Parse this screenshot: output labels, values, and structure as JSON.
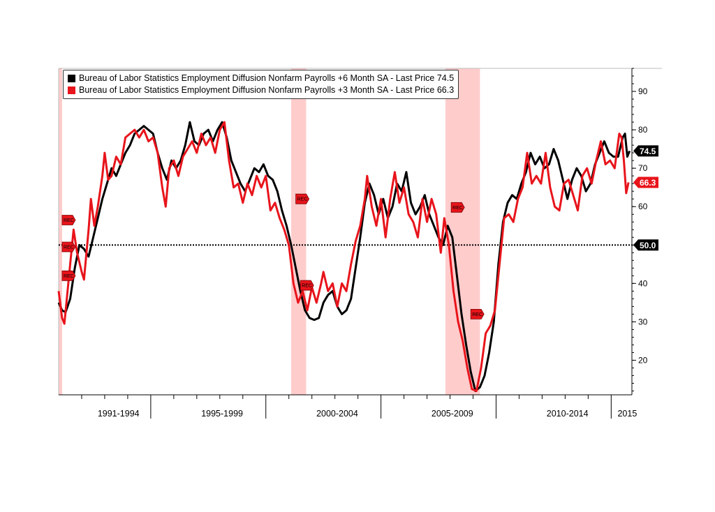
{
  "chart_data": {
    "type": "line",
    "title": "",
    "xlabel": "",
    "ylabel": "",
    "xlim": [
      1990.3,
      2015.2
    ],
    "ylim": [
      11,
      96
    ],
    "y_ticks": [
      20,
      30,
      40,
      50,
      60,
      70,
      80,
      90
    ],
    "y_axis_side": "right",
    "x_period_labels": [
      {
        "label": "1991-1994",
        "center": 1992.9
      },
      {
        "label": "1995-1999",
        "center": 1997.4
      },
      {
        "label": "2000-2004",
        "center": 2002.4
      },
      {
        "label": "2005-2009",
        "center": 2007.4
      },
      {
        "label": "2010-2014",
        "center": 2012.4
      },
      {
        "label": "2015",
        "center": 2015.0
      }
    ],
    "x_period_dividers": [
      1994.3,
      1999.3,
      2004.3,
      2009.3,
      2014.3
    ],
    "x_minor_ticks": [
      1991.3,
      1992.3,
      1993.3,
      1995.3,
      1996.3,
      1997.3,
      1998.3,
      2000.3,
      2001.3,
      2002.3,
      2003.3,
      2005.3,
      2006.3,
      2007.3,
      2008.3,
      2010.3,
      2011.3,
      2012.3,
      2013.3
    ],
    "reference_line": {
      "y": 50.0,
      "label": "50.0",
      "style": "dotted"
    },
    "recession_bands": [
      [
        1990.3,
        1990.45
      ],
      [
        2000.4,
        2001.05
      ],
      [
        2007.1,
        2008.6
      ]
    ],
    "rec_markers": [
      {
        "label": "REC",
        "x": 1990.45,
        "y": 56.5
      },
      {
        "label": "REC",
        "x": 1990.45,
        "y": 49.5
      },
      {
        "label": "REC",
        "x": 1990.45,
        "y": 42.0
      },
      {
        "label": "REC",
        "x": 2000.6,
        "y": 62.0
      },
      {
        "label": "REC",
        "x": 2000.8,
        "y": 39.5
      },
      {
        "label": "REC",
        "x": 2007.35,
        "y": 59.8
      },
      {
        "label": "REC",
        "x": 2008.2,
        "y": 32.0
      }
    ],
    "series": [
      {
        "name": "Bureau of Labor Statistics Employment Diffusion Nonfarm Payrolls +6 Month SA - Last Price 74.5",
        "color": "#000000",
        "last_label": "74.5",
        "points": [
          [
            1990.3,
            35
          ],
          [
            1990.45,
            33
          ],
          [
            1990.6,
            32.5
          ],
          [
            1990.8,
            36
          ],
          [
            1991.0,
            44
          ],
          [
            1991.2,
            50
          ],
          [
            1991.4,
            49
          ],
          [
            1991.6,
            47
          ],
          [
            1991.8,
            52
          ],
          [
            1992.0,
            57
          ],
          [
            1992.2,
            62
          ],
          [
            1992.4,
            66
          ],
          [
            1992.6,
            70
          ],
          [
            1992.8,
            68
          ],
          [
            1993.0,
            71
          ],
          [
            1993.2,
            74
          ],
          [
            1993.4,
            76
          ],
          [
            1993.6,
            79
          ],
          [
            1993.8,
            80
          ],
          [
            1994.0,
            81
          ],
          [
            1994.2,
            80
          ],
          [
            1994.4,
            79
          ],
          [
            1994.6,
            74
          ],
          [
            1994.8,
            70
          ],
          [
            1995.0,
            67
          ],
          [
            1995.2,
            72
          ],
          [
            1995.4,
            70
          ],
          [
            1995.6,
            72
          ],
          [
            1995.8,
            76
          ],
          [
            1996.0,
            82
          ],
          [
            1996.2,
            77
          ],
          [
            1996.4,
            76
          ],
          [
            1996.6,
            79
          ],
          [
            1996.8,
            80
          ],
          [
            1997.0,
            77
          ],
          [
            1997.2,
            80
          ],
          [
            1997.4,
            82
          ],
          [
            1997.6,
            78
          ],
          [
            1997.8,
            72
          ],
          [
            1998.0,
            69
          ],
          [
            1998.2,
            66
          ],
          [
            1998.4,
            64
          ],
          [
            1998.6,
            67
          ],
          [
            1998.8,
            70
          ],
          [
            1999.0,
            69
          ],
          [
            1999.2,
            71
          ],
          [
            1999.4,
            68
          ],
          [
            1999.6,
            67
          ],
          [
            1999.8,
            64
          ],
          [
            2000.0,
            59
          ],
          [
            2000.2,
            55
          ],
          [
            2000.4,
            50
          ],
          [
            2000.6,
            44
          ],
          [
            2000.8,
            38
          ],
          [
            2001.0,
            33
          ],
          [
            2001.2,
            31
          ],
          [
            2001.4,
            30.5
          ],
          [
            2001.6,
            31
          ],
          [
            2001.8,
            35
          ],
          [
            2002.0,
            37
          ],
          [
            2002.2,
            38
          ],
          [
            2002.4,
            34
          ],
          [
            2002.6,
            32
          ],
          [
            2002.8,
            33
          ],
          [
            2003.0,
            36
          ],
          [
            2003.2,
            44
          ],
          [
            2003.4,
            52
          ],
          [
            2003.6,
            61
          ],
          [
            2003.8,
            66
          ],
          [
            2004.0,
            63
          ],
          [
            2004.2,
            58
          ],
          [
            2004.4,
            62
          ],
          [
            2004.6,
            57
          ],
          [
            2004.8,
            60
          ],
          [
            2005.0,
            66
          ],
          [
            2005.2,
            64
          ],
          [
            2005.4,
            69
          ],
          [
            2005.6,
            61
          ],
          [
            2005.8,
            58
          ],
          [
            2006.0,
            60
          ],
          [
            2006.2,
            63
          ],
          [
            2006.4,
            58
          ],
          [
            2006.6,
            55
          ],
          [
            2006.8,
            52
          ],
          [
            2007.0,
            50
          ],
          [
            2007.2,
            55
          ],
          [
            2007.4,
            52
          ],
          [
            2007.6,
            42
          ],
          [
            2007.8,
            32
          ],
          [
            2008.0,
            24
          ],
          [
            2008.2,
            17
          ],
          [
            2008.4,
            12
          ],
          [
            2008.6,
            13
          ],
          [
            2008.8,
            16
          ],
          [
            2009.0,
            22
          ],
          [
            2009.2,
            30
          ],
          [
            2009.4,
            45
          ],
          [
            2009.6,
            56
          ],
          [
            2009.8,
            61
          ],
          [
            2010.0,
            63
          ],
          [
            2010.2,
            62
          ],
          [
            2010.4,
            66
          ],
          [
            2010.6,
            69
          ],
          [
            2010.8,
            74
          ],
          [
            2011.0,
            71
          ],
          [
            2011.2,
            73
          ],
          [
            2011.4,
            70
          ],
          [
            2011.6,
            71
          ],
          [
            2011.8,
            75
          ],
          [
            2012.0,
            72
          ],
          [
            2012.2,
            67
          ],
          [
            2012.4,
            62
          ],
          [
            2012.6,
            67
          ],
          [
            2012.8,
            70
          ],
          [
            2013.0,
            68
          ],
          [
            2013.2,
            64
          ],
          [
            2013.4,
            66
          ],
          [
            2013.6,
            71
          ],
          [
            2013.8,
            74
          ],
          [
            2014.0,
            77
          ],
          [
            2014.2,
            74
          ],
          [
            2014.4,
            73
          ],
          [
            2014.6,
            73
          ],
          [
            2014.8,
            78
          ],
          [
            2014.9,
            79
          ],
          [
            2015.0,
            73
          ],
          [
            2015.1,
            74.5
          ]
        ]
      },
      {
        "name": "Bureau of Labor Statistics Employment Diffusion Nonfarm Payrolls +3 Month SA - Last Price 66.3",
        "color": "#e8141b",
        "last_label": "66.3",
        "points": [
          [
            1990.3,
            38
          ],
          [
            1990.45,
            31
          ],
          [
            1990.55,
            29.5
          ],
          [
            1990.8,
            45
          ],
          [
            1990.95,
            54
          ],
          [
            1991.1,
            48
          ],
          [
            1991.3,
            43
          ],
          [
            1991.4,
            41
          ],
          [
            1991.6,
            54
          ],
          [
            1991.7,
            62
          ],
          [
            1991.85,
            55
          ],
          [
            1992.0,
            60
          ],
          [
            1992.2,
            68
          ],
          [
            1992.3,
            74
          ],
          [
            1992.45,
            67
          ],
          [
            1992.6,
            68
          ],
          [
            1992.8,
            73
          ],
          [
            1993.0,
            71
          ],
          [
            1993.2,
            78
          ],
          [
            1993.4,
            79
          ],
          [
            1993.6,
            80
          ],
          [
            1993.8,
            78
          ],
          [
            1994.0,
            80
          ],
          [
            1994.2,
            77
          ],
          [
            1994.4,
            78
          ],
          [
            1994.6,
            74
          ],
          [
            1994.8,
            65
          ],
          [
            1994.95,
            60
          ],
          [
            1995.1,
            70
          ],
          [
            1995.3,
            72
          ],
          [
            1995.5,
            68
          ],
          [
            1995.7,
            73
          ],
          [
            1995.9,
            75
          ],
          [
            1996.1,
            77
          ],
          [
            1996.3,
            74
          ],
          [
            1996.5,
            79
          ],
          [
            1996.7,
            76
          ],
          [
            1996.9,
            78
          ],
          [
            1997.1,
            74
          ],
          [
            1997.3,
            80
          ],
          [
            1997.5,
            82
          ],
          [
            1997.7,
            72
          ],
          [
            1997.9,
            65
          ],
          [
            1998.1,
            66
          ],
          [
            1998.3,
            61
          ],
          [
            1998.5,
            66
          ],
          [
            1998.7,
            63
          ],
          [
            1998.9,
            68
          ],
          [
            1999.1,
            65
          ],
          [
            1999.3,
            68
          ],
          [
            1999.5,
            59
          ],
          [
            1999.7,
            61
          ],
          [
            1999.9,
            57
          ],
          [
            2000.1,
            54
          ],
          [
            2000.3,
            50
          ],
          [
            2000.5,
            40
          ],
          [
            2000.7,
            35
          ],
          [
            2000.9,
            38
          ],
          [
            2001.1,
            33
          ],
          [
            2001.3,
            39
          ],
          [
            2001.5,
            35
          ],
          [
            2001.7,
            40
          ],
          [
            2001.8,
            43
          ],
          [
            2002.0,
            38
          ],
          [
            2002.2,
            40
          ],
          [
            2002.4,
            34
          ],
          [
            2002.6,
            40
          ],
          [
            2002.8,
            38
          ],
          [
            2003.0,
            45
          ],
          [
            2003.2,
            51
          ],
          [
            2003.4,
            55
          ],
          [
            2003.6,
            62
          ],
          [
            2003.7,
            68
          ],
          [
            2003.9,
            60
          ],
          [
            2004.1,
            55
          ],
          [
            2004.3,
            62
          ],
          [
            2004.5,
            52
          ],
          [
            2004.7,
            62
          ],
          [
            2004.9,
            69
          ],
          [
            2005.1,
            61
          ],
          [
            2005.3,
            65
          ],
          [
            2005.5,
            58
          ],
          [
            2005.7,
            56
          ],
          [
            2005.9,
            52
          ],
          [
            2006.1,
            62
          ],
          [
            2006.3,
            56
          ],
          [
            2006.5,
            62
          ],
          [
            2006.7,
            58
          ],
          [
            2006.9,
            48
          ],
          [
            2007.05,
            57
          ],
          [
            2007.25,
            50
          ],
          [
            2007.45,
            38
          ],
          [
            2007.65,
            30
          ],
          [
            2007.85,
            25
          ],
          [
            2008.05,
            18
          ],
          [
            2008.25,
            12.5
          ],
          [
            2008.45,
            12
          ],
          [
            2008.65,
            18
          ],
          [
            2008.85,
            27
          ],
          [
            2009.05,
            29
          ],
          [
            2009.25,
            33
          ],
          [
            2009.45,
            45
          ],
          [
            2009.65,
            57
          ],
          [
            2009.85,
            58
          ],
          [
            2010.05,
            56
          ],
          [
            2010.25,
            62
          ],
          [
            2010.45,
            65
          ],
          [
            2010.65,
            74
          ],
          [
            2010.85,
            66
          ],
          [
            2011.05,
            68
          ],
          [
            2011.25,
            66
          ],
          [
            2011.45,
            74
          ],
          [
            2011.65,
            65
          ],
          [
            2011.85,
            60
          ],
          [
            2012.05,
            59
          ],
          [
            2012.25,
            66
          ],
          [
            2012.45,
            67
          ],
          [
            2012.65,
            63
          ],
          [
            2012.85,
            59
          ],
          [
            2013.05,
            68
          ],
          [
            2013.25,
            70
          ],
          [
            2013.45,
            66
          ],
          [
            2013.65,
            72
          ],
          [
            2013.85,
            77
          ],
          [
            2014.05,
            71
          ],
          [
            2014.25,
            72
          ],
          [
            2014.45,
            70
          ],
          [
            2014.65,
            79
          ],
          [
            2014.75,
            78
          ],
          [
            2014.85,
            72
          ],
          [
            2014.95,
            63.5
          ],
          [
            2015.05,
            66.3
          ]
        ]
      }
    ]
  }
}
